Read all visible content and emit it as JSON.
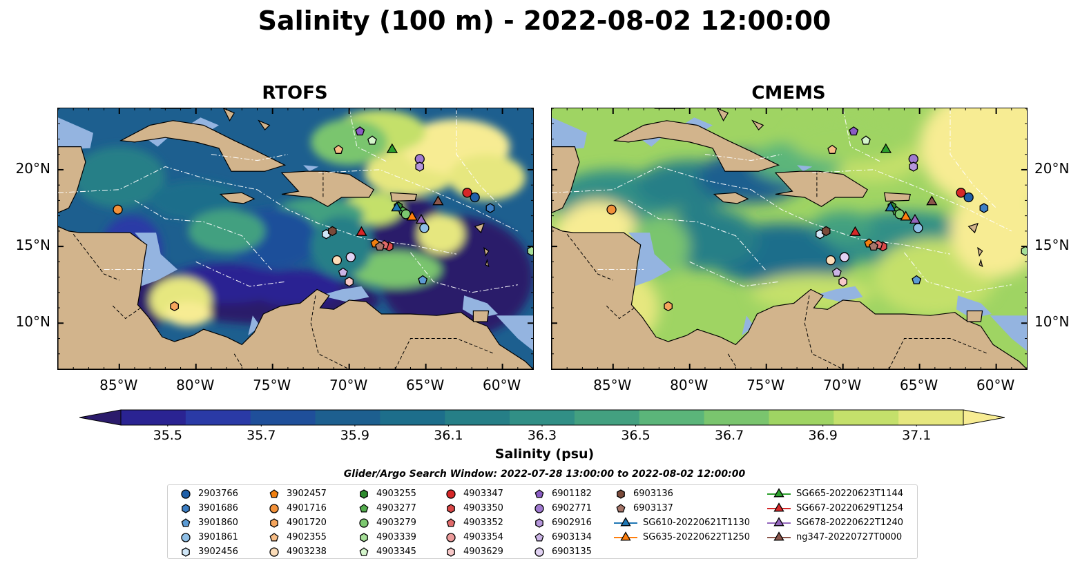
{
  "title": "Salinity (100 m) - 2022-08-02 12:00:00",
  "panels": [
    {
      "title": "RTOFS"
    },
    {
      "title": "CMEMS"
    }
  ],
  "colors": {
    "land": "#d2b48c",
    "shelf": "#94b4e0",
    "colormap": [
      "#2b1b6b",
      "#2a2392",
      "#2a3aa6",
      "#1f4f9a",
      "#1d5f8f",
      "#1d6e8b",
      "#267f87",
      "#318f86",
      "#43a080",
      "#5bb57a",
      "#7ac56e",
      "#9fd463",
      "#c4e06b",
      "#e6e77f",
      "#f7ec93"
    ]
  },
  "chart_data": {
    "type": "heatmap",
    "title": "Salinity (100 m) - 2022-08-02 12:00:00",
    "colorbar": {
      "label": "Salinity (psu)",
      "ticks": [
        35.5,
        35.7,
        35.9,
        36.1,
        36.3,
        36.5,
        36.7,
        36.9,
        37.1
      ],
      "tick_labels": [
        "35.5",
        "35.7",
        "35.9",
        "36.1",
        "36.3",
        "36.5",
        "36.7",
        "36.9",
        "37.1"
      ],
      "range": [
        35.4,
        37.2
      ],
      "extend": "both"
    },
    "x_axis": {
      "ticks": [
        -85,
        -80,
        -75,
        -70,
        -65,
        -60
      ],
      "tick_labels": [
        "85°W",
        "80°W",
        "75°W",
        "70°W",
        "65°W",
        "60°W"
      ],
      "range": [
        -89,
        -58
      ]
    },
    "y_axis": {
      "ticks": [
        10,
        15,
        20
      ],
      "tick_labels": [
        "10°N",
        "15°N",
        "20°N"
      ],
      "range": [
        7,
        24
      ]
    },
    "panels": [
      "RTOFS",
      "CMEMS"
    ],
    "search_window": "Glider/Argo Search Window: 2022-07-28 13:00:00 to 2022-08-02 12:00:00",
    "observations": [
      {
        "id": "2903766",
        "marker": "circle",
        "color": "#1f5fa8",
        "lon": -61.8,
        "lat": 18.2
      },
      {
        "id": "3901686",
        "marker": "hexagon",
        "color": "#3d7fc4",
        "lon": -60.8,
        "lat": 17.5
      },
      {
        "id": "3901860",
        "marker": "pentagon",
        "color": "#5c9bd4",
        "lon": -65.2,
        "lat": 12.8
      },
      {
        "id": "3901861",
        "marker": "circle",
        "color": "#8fbfe6",
        "lon": -65.1,
        "lat": 16.2
      },
      {
        "id": "3902456",
        "marker": "hexagon",
        "color": "#cfe6f7",
        "lon": -71.5,
        "lat": 15.8
      },
      {
        "id": "3902457",
        "marker": "pentagon",
        "color": "#f07f10",
        "lon": -68.3,
        "lat": 15.2
      },
      {
        "id": "4901716",
        "marker": "circle",
        "color": "#f2913a",
        "lon": -85.1,
        "lat": 17.4
      },
      {
        "id": "4901720",
        "marker": "hexagon",
        "color": "#f5a55c",
        "lon": -81.4,
        "lat": 11.1
      },
      {
        "id": "4902355",
        "marker": "pentagon",
        "color": "#f7bd86",
        "lon": -70.7,
        "lat": 21.3
      },
      {
        "id": "4903238",
        "marker": "circle",
        "color": "#fbdcb8",
        "lon": -70.8,
        "lat": 14.1
      },
      {
        "id": "4903255",
        "marker": "hexagon",
        "color": "#2e8b2e",
        "lon": -66.8,
        "lat": 17.6
      },
      {
        "id": "4903277",
        "marker": "pentagon",
        "color": "#53ad4d",
        "lon": -66.5,
        "lat": 17.3
      },
      {
        "id": "4903279",
        "marker": "circle",
        "color": "#7cc86f",
        "lon": -66.3,
        "lat": 17.1
      },
      {
        "id": "4903339",
        "marker": "hexagon",
        "color": "#a6df98",
        "lon": -58.1,
        "lat": 14.7
      },
      {
        "id": "4903345",
        "marker": "pentagon",
        "color": "#d4f5cb",
        "lon": -68.5,
        "lat": 21.9
      },
      {
        "id": "4903347",
        "marker": "circle",
        "color": "#d62728",
        "lon": -62.3,
        "lat": 18.5
      },
      {
        "id": "4903350",
        "marker": "hexagon",
        "color": "#db4848",
        "lon": -67.4,
        "lat": 15.0
      },
      {
        "id": "4903352",
        "marker": "pentagon",
        "color": "#e06a6a",
        "lon": -67.7,
        "lat": 15.1
      },
      {
        "id": "4903354",
        "marker": "circle",
        "color": "#ec9b9b",
        "lon": -69.9,
        "lat": 14.3
      },
      {
        "id": "4903629",
        "marker": "hexagon",
        "color": "#f7c8c8",
        "lon": -70.0,
        "lat": 12.7
      },
      {
        "id": "6901182",
        "marker": "pentagon",
        "color": "#8a5cc4",
        "lon": -69.3,
        "lat": 22.5
      },
      {
        "id": "6902771",
        "marker": "circle",
        "color": "#9f79cf",
        "lon": -65.4,
        "lat": 20.7
      },
      {
        "id": "6902916",
        "marker": "hexagon",
        "color": "#b596db",
        "lon": -65.4,
        "lat": 20.2
      },
      {
        "id": "6903134",
        "marker": "pentagon",
        "color": "#cbb4e6",
        "lon": -70.4,
        "lat": 13.3
      },
      {
        "id": "6903135",
        "marker": "circle",
        "color": "#e1d2f3",
        "lon": -69.9,
        "lat": 14.3
      },
      {
        "id": "6903136",
        "marker": "hexagon",
        "color": "#7a4a3a",
        "lon": -71.1,
        "lat": 16.0
      },
      {
        "id": "6903137",
        "marker": "pentagon",
        "color": "#a6766a",
        "lon": -68.0,
        "lat": 15.0
      },
      {
        "id": "SG610-20220621T1130",
        "marker": "triangle",
        "color": "#1f77b4",
        "lon": -66.9,
        "lat": 17.5
      },
      {
        "id": "SG635-20220622T1250",
        "marker": "triangle",
        "color": "#ff7f0e",
        "lon": -65.9,
        "lat": 16.9
      },
      {
        "id": "SG665-20220623T1144",
        "marker": "triangle",
        "color": "#2ca02c",
        "lon": -67.2,
        "lat": 21.3
      },
      {
        "id": "SG667-20220629T1254",
        "marker": "triangle",
        "color": "#d62728",
        "lon": -69.2,
        "lat": 15.9
      },
      {
        "id": "SG678-20220622T1240",
        "marker": "triangle",
        "color": "#9467bd",
        "lon": -65.3,
        "lat": 16.7
      },
      {
        "id": "ng347-20220727T0000",
        "marker": "triangle",
        "color": "#8c564b",
        "lon": -64.2,
        "lat": 17.9
      }
    ]
  }
}
